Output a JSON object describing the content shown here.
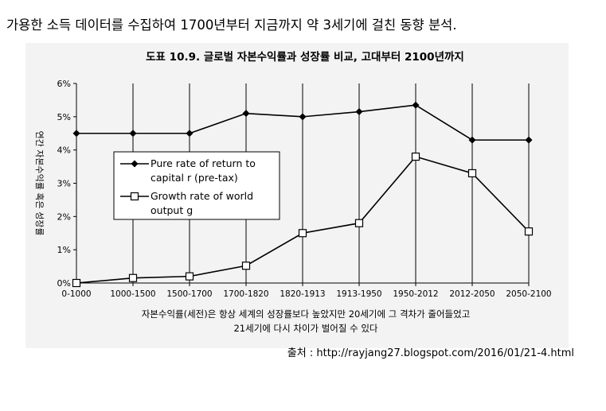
{
  "caption": "가용한 소득 데이터를 수집하여 1700년부터 지금까지 약 3세기에 걸친 동향 분석.",
  "source": "출처 : http://rayjang27.blogspot.com/2016/01/21-4.html",
  "colors": {
    "panel": "#f3f3f3",
    "series": "#000000",
    "grid": "#000000"
  },
  "chart_data": {
    "type": "line",
    "title": "도표 10.9. 글로벌 자본수익률과 성장률 비교, 고대부터 2100년까지",
    "ylabel": "연간 자본수익률 혹은 성장률",
    "xlabel": "",
    "note": [
      "자본수익률(세전)은 항상 세계의 성장률보다 높았지만 20세기에 그 격차가 줄어들었고",
      "21세기에 다시 차이가 벌어질 수 있다"
    ],
    "categories": [
      "0-1000",
      "1000-1500",
      "1500-1700",
      "1700-1820",
      "1820-1913",
      "1913-1950",
      "1950-2012",
      "2012-2050",
      "2050-2100"
    ],
    "ylim": [
      0,
      6
    ],
    "yticks": [
      "0%",
      "1%",
      "2%",
      "3%",
      "4%",
      "5%",
      "6%"
    ],
    "grid": "vertical",
    "legend_position": "center-left",
    "series": [
      {
        "name": "Pure rate of return to capital r (pre-tax)",
        "legend_lines": [
          "Pure rate of return to",
          "capital r (pre-tax)"
        ],
        "marker": "diamond-filled",
        "values": [
          4.5,
          4.5,
          4.5,
          5.1,
          5.0,
          5.15,
          5.35,
          4.3,
          4.3
        ]
      },
      {
        "name": "Growth rate of world output g",
        "legend_lines": [
          "Growth rate of world",
          "output g"
        ],
        "marker": "square-open",
        "values": [
          0.0,
          0.15,
          0.2,
          0.52,
          1.5,
          1.8,
          3.8,
          3.3,
          1.55
        ]
      }
    ]
  }
}
